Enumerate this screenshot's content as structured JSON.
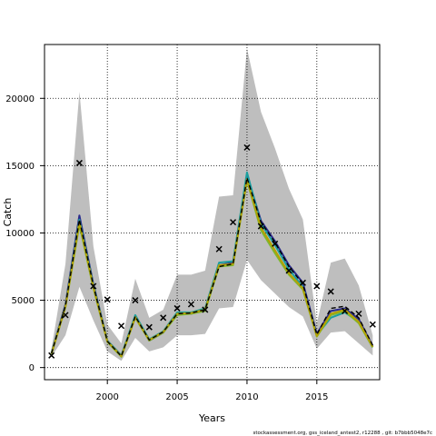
{
  "chart_data": {
    "type": "line",
    "title": "",
    "xlabel": "Years",
    "ylabel": "Catch",
    "xlim": [
      1995.5,
      2019.5
    ],
    "ylim": [
      -900,
      24000
    ],
    "xticks": [
      2000,
      2005,
      2010,
      2015
    ],
    "yticks": [
      0,
      5000,
      10000,
      15000,
      20000
    ],
    "grid": true,
    "grid_style": "dotted",
    "legend": "none",
    "footer_text": "stockassessment.org,  gss_iceland_antest2,  r12288 ,  git: b7bbb5048e7c",
    "observed": {
      "marker": "x",
      "color": "#000000",
      "x": [
        1996,
        1997,
        1998,
        1999,
        2000,
        2001,
        2002,
        2003,
        2004,
        2005,
        2006,
        2007,
        2008,
        2009,
        2010,
        2011,
        2012,
        2013,
        2014,
        2015,
        2016,
        2017,
        2018,
        2019
      ],
      "y": [
        900,
        3900,
        15200,
        6050,
        5050,
        3100,
        5000,
        3000,
        3700,
        4400,
        4700,
        4300,
        8800,
        10800,
        16350,
        10500,
        9200,
        7200,
        6300,
        6050,
        5650,
        4200,
        4000,
        3200
      ]
    },
    "confidence_band": {
      "color": "#bebebe",
      "x": [
        1996,
        1997,
        1998,
        1999,
        2000,
        2001,
        2002,
        2003,
        2004,
        2005,
        2006,
        2007,
        2008,
        2009,
        2010,
        2011,
        2012,
        2013,
        2014,
        2015,
        2016,
        2017,
        2018,
        2019
      ],
      "lower": [
        800,
        2400,
        6000,
        3500,
        1200,
        500,
        2200,
        1200,
        1500,
        2400,
        2400,
        2500,
        4400,
        4500,
        8000,
        6500,
        5500,
        4500,
        3800,
        1400,
        2600,
        2700,
        1800,
        900
      ],
      "upper": [
        1400,
        7700,
        20500,
        9000,
        3200,
        1800,
        6600,
        3700,
        4300,
        6900,
        6900,
        7200,
        12700,
        12800,
        23700,
        19000,
        16300,
        13300,
        11000,
        3300,
        7800,
        8100,
        6100,
        2400
      ]
    },
    "series": [
      {
        "name": "",
        "color": "#2a2a8c",
        "dashed": false,
        "x": [
          1996,
          1997,
          1998,
          1999,
          2000,
          2001,
          2002,
          2003,
          2004,
          2005,
          2006,
          2007,
          2008,
          2009,
          2010,
          2011,
          2012,
          2013,
          2014,
          2015,
          2016,
          2017,
          2018,
          2019
        ],
        "values": [
          1100,
          4700,
          11300,
          6200,
          2000,
          900,
          3800,
          2000,
          2600,
          4000,
          4000,
          4300,
          7600,
          7800,
          14300,
          10900,
          9400,
          7600,
          6300,
          2500,
          4200,
          4400,
          3600,
          1600
        ]
      },
      {
        "name": "",
        "color": "#1b9e9e",
        "dashed": false,
        "x": [
          1996,
          1997,
          1998,
          1999,
          2000,
          2001,
          2002,
          2003,
          2004,
          2005,
          2006,
          2007,
          2008,
          2009,
          2010,
          2011,
          2012,
          2013,
          2014,
          2015,
          2016,
          2017,
          2018,
          2019
        ],
        "values": [
          1100,
          4600,
          11000,
          6100,
          2000,
          900,
          3900,
          2100,
          2700,
          4100,
          4100,
          4400,
          7800,
          7900,
          14500,
          10700,
          9100,
          7300,
          6000,
          2400,
          3700,
          4100,
          3400,
          1500
        ]
      },
      {
        "name": "",
        "color": "#7cb82f",
        "dashed": false,
        "x": [
          1996,
          1997,
          1998,
          1999,
          2000,
          2001,
          2002,
          2003,
          2004,
          2005,
          2006,
          2007,
          2008,
          2009,
          2010,
          2011,
          2012,
          2013,
          2014,
          2015,
          2016,
          2017,
          2018,
          2019
        ],
        "values": [
          1000,
          4500,
          10600,
          5900,
          1900,
          800,
          3700,
          2000,
          2600,
          3900,
          4000,
          4200,
          7500,
          7600,
          13900,
          10200,
          8500,
          6900,
          5800,
          2300,
          3900,
          4200,
          3300,
          1500
        ]
      },
      {
        "name": "",
        "color": "#b5a000",
        "dashed": false,
        "x": [
          1996,
          1997,
          1998,
          1999,
          2000,
          2001,
          2002,
          2003,
          2004,
          2005,
          2006,
          2007,
          2008,
          2009,
          2010,
          2011,
          2012,
          2013,
          2014,
          2015,
          2016,
          2017,
          2018,
          2019
        ],
        "values": [
          1050,
          4550,
          10800,
          6000,
          1950,
          850,
          3750,
          2050,
          2650,
          4000,
          4050,
          4300,
          7600,
          7700,
          14000,
          10400,
          8700,
          7000,
          5900,
          2350,
          4000,
          4300,
          3400,
          1550
        ]
      },
      {
        "name": "",
        "color": "#000000",
        "dashed": true,
        "x": [
          1996,
          1997,
          1998,
          1999,
          2000,
          2001,
          2002,
          2003,
          2004,
          2005,
          2006,
          2007,
          2008,
          2009,
          2010,
          2011,
          2012,
          2013,
          2014,
          2015,
          2016,
          2017,
          2018,
          2019
        ],
        "values": [
          1050,
          4600,
          11000,
          6100,
          1950,
          850,
          3800,
          2050,
          2650,
          4000,
          4050,
          4300,
          7500,
          7700,
          14100,
          10800,
          9300,
          7500,
          6200,
          2450,
          4400,
          4550,
          3700,
          1650
        ]
      }
    ]
  }
}
